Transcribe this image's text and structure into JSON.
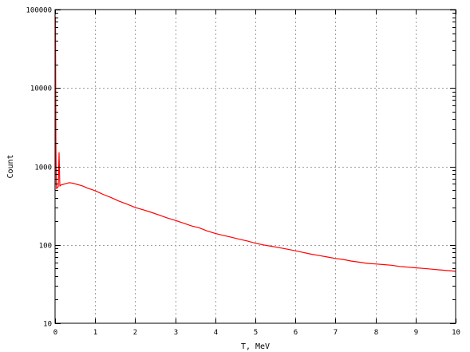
{
  "chart_data": {
    "type": "line",
    "xlabel": "T, MeV",
    "ylabel": "Count",
    "xlim": [
      0,
      10
    ],
    "ylim": [
      10,
      100000
    ],
    "y_scale": "log",
    "grid": true,
    "x_ticks": [
      0,
      1,
      2,
      3,
      4,
      5,
      6,
      7,
      8,
      9,
      10
    ],
    "x_tick_labels": [
      "0",
      "1",
      "2",
      "3",
      "4",
      "5",
      "6",
      "7",
      "8",
      "9",
      "10"
    ],
    "y_ticks": [
      10,
      100,
      1000,
      10000,
      100000
    ],
    "y_tick_labels": [
      "10",
      "100",
      "1000",
      "10000",
      "100000"
    ],
    "series": [
      {
        "color": "#ff0000",
        "x": [
          0.0,
          0.01,
          0.02,
          0.03,
          0.04,
          0.06,
          0.08,
          0.1,
          0.12,
          0.15,
          0.2,
          0.25,
          0.3,
          0.35,
          0.4,
          0.45,
          0.5,
          0.55,
          0.6,
          0.7,
          0.8,
          0.9,
          1.0,
          1.2,
          1.4,
          1.6,
          1.8,
          2.0,
          2.2,
          2.4,
          2.6,
          2.8,
          3.0,
          3.2,
          3.4,
          3.6,
          3.8,
          4.0,
          4.2,
          4.4,
          4.6,
          4.8,
          5.0,
          5.2,
          5.4,
          5.6,
          5.8,
          6.0,
          6.2,
          6.4,
          6.6,
          6.8,
          7.0,
          7.2,
          7.4,
          7.6,
          7.8,
          8.0,
          8.2,
          8.4,
          8.6,
          8.8,
          9.0,
          9.2,
          9.4,
          9.6,
          9.8,
          10.0
        ],
        "values": [
          500,
          80000,
          2000,
          600,
          520,
          540,
          550,
          1500,
          560,
          580,
          590,
          600,
          610,
          620,
          615,
          610,
          600,
          590,
          580,
          560,
          530,
          510,
          490,
          440,
          400,
          360,
          330,
          300,
          280,
          260,
          240,
          220,
          205,
          190,
          175,
          165,
          150,
          140,
          132,
          125,
          118,
          112,
          105,
          100,
          96,
          92,
          88,
          84,
          80,
          76,
          73,
          70,
          67,
          65,
          62,
          60,
          58,
          57,
          56,
          55,
          53,
          52,
          51,
          50,
          49,
          48,
          47,
          46
        ]
      }
    ]
  }
}
